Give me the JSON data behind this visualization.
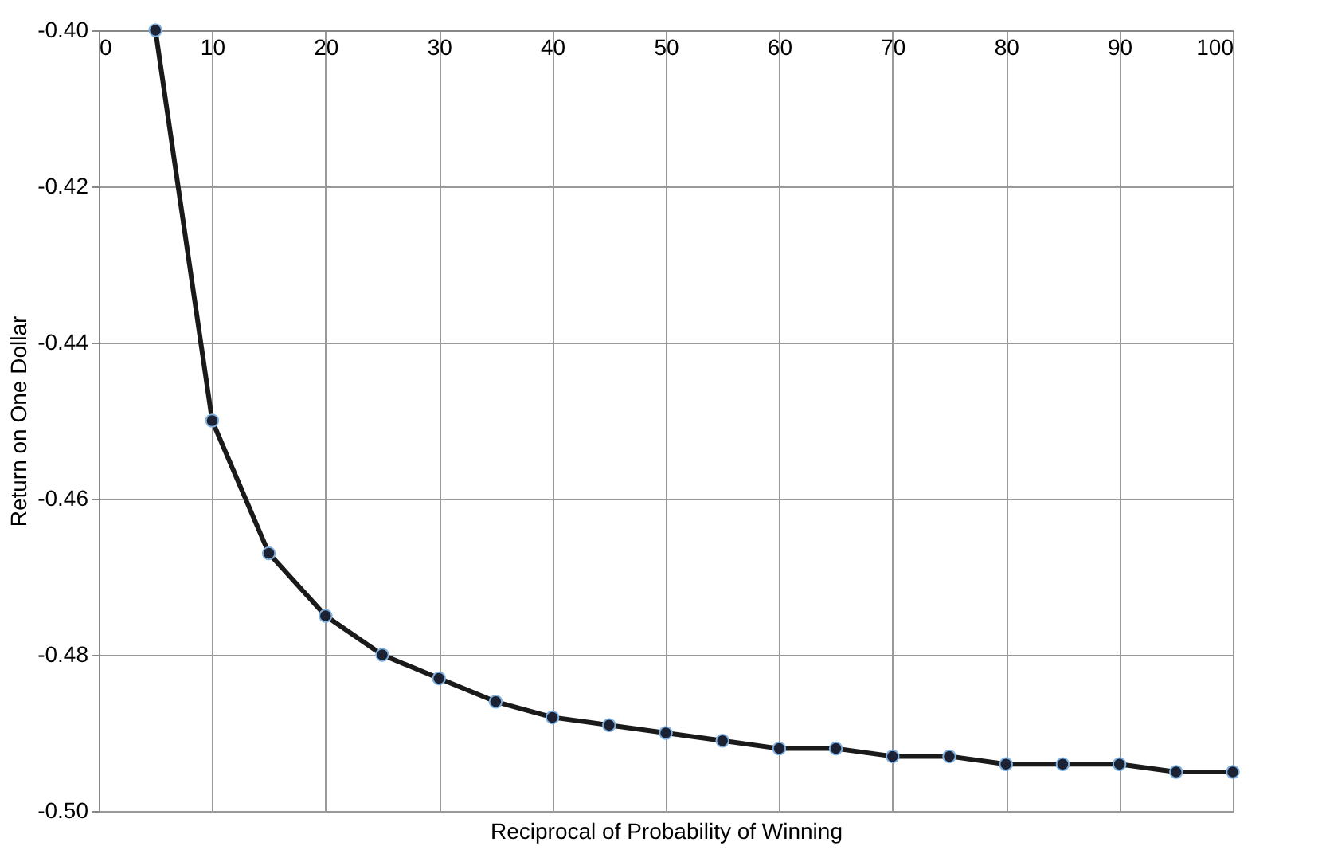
{
  "chart_data": {
    "type": "line",
    "xlabel": "Reciprocal of Probability of Winning",
    "ylabel": "Return on One Dollar",
    "x": [
      5,
      10,
      15,
      20,
      25,
      30,
      35,
      40,
      45,
      50,
      55,
      60,
      65,
      70,
      75,
      80,
      85,
      90,
      95,
      100
    ],
    "series": [
      {
        "color": "#1a1a1a",
        "values": [
          -0.4,
          -0.45,
          -0.467,
          -0.475,
          -0.48,
          -0.483,
          -0.486,
          -0.488,
          -0.489,
          -0.49,
          -0.491,
          -0.492,
          -0.492,
          -0.493,
          -0.493,
          -0.494,
          -0.494,
          -0.494,
          -0.495,
          -0.495
        ]
      }
    ],
    "xlim": [
      0,
      100
    ],
    "xticks": [
      0,
      10,
      20,
      30,
      40,
      50,
      60,
      70,
      80,
      90,
      100
    ],
    "ylim": [
      -0.5,
      -0.4
    ],
    "yticks": [
      {
        "value": -0.5,
        "label": "-0.50"
      },
      {
        "value": -0.48,
        "label": "-0.48"
      },
      {
        "value": -0.46,
        "label": "-0.46"
      },
      {
        "value": -0.44,
        "label": "-0.44"
      },
      {
        "value": -0.42,
        "label": "-0.42"
      },
      {
        "value": -0.4,
        "label": "-0.40"
      }
    ],
    "grid": true,
    "marker": "circle",
    "line_style": "solid"
  }
}
